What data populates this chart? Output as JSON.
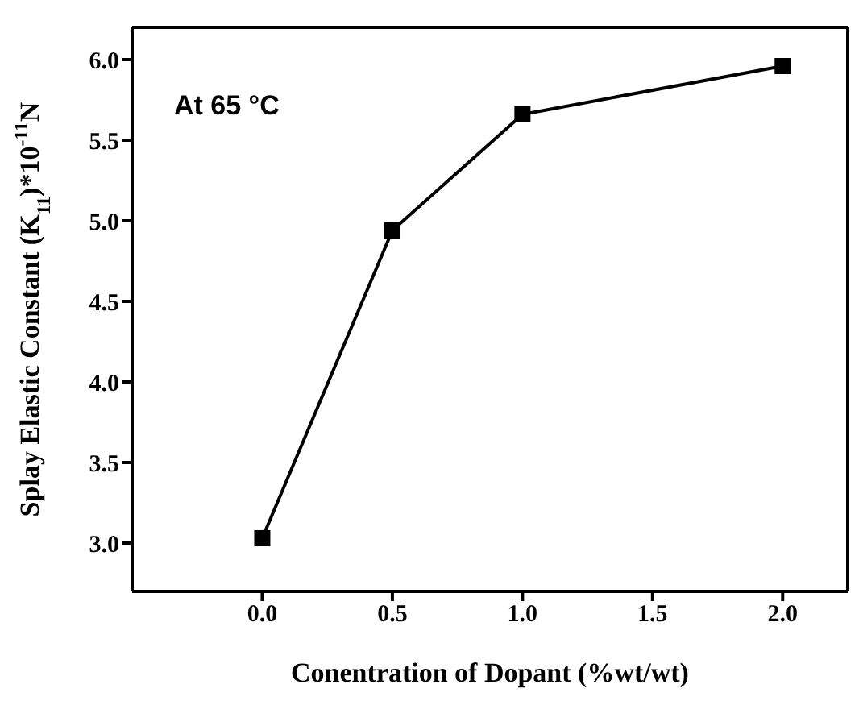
{
  "chart_data": {
    "type": "line",
    "xlabel": "Conentration of Dopant (%wt/wt)",
    "ylabel": "Splay Elastic Constant (K$_{11}$)*10$^{-11}$N",
    "annotations": [
      "At 65 °C"
    ],
    "x": [
      0.0,
      0.5,
      1.0,
      2.0
    ],
    "series": [
      {
        "color": "#000000",
        "values": [
          3.03,
          4.94,
          5.66,
          5.96
        ]
      }
    ],
    "xlim": [
      -0.5,
      2.25
    ],
    "xticks": [
      {
        "value": 0,
        "label": "0.0"
      },
      {
        "value": 0.5,
        "label": "0.5"
      },
      {
        "value": 1,
        "label": "1.0"
      },
      {
        "value": 1.5,
        "label": "1.5"
      },
      {
        "value": 2,
        "label": "2.0"
      }
    ],
    "ylim": [
      2.7,
      6.2
    ],
    "yticks": [
      {
        "value": 3,
        "label": "3.0"
      },
      {
        "value": 3.5,
        "label": "3.5"
      },
      {
        "value": 4,
        "label": "4.0"
      },
      {
        "value": 4.5,
        "label": "4.5"
      },
      {
        "value": 5,
        "label": "5.0"
      },
      {
        "value": 5.5,
        "label": "5.5"
      },
      {
        "value": 6,
        "label": "6.0"
      }
    ],
    "marker": "square",
    "line_style": "solid",
    "grid": false
  }
}
